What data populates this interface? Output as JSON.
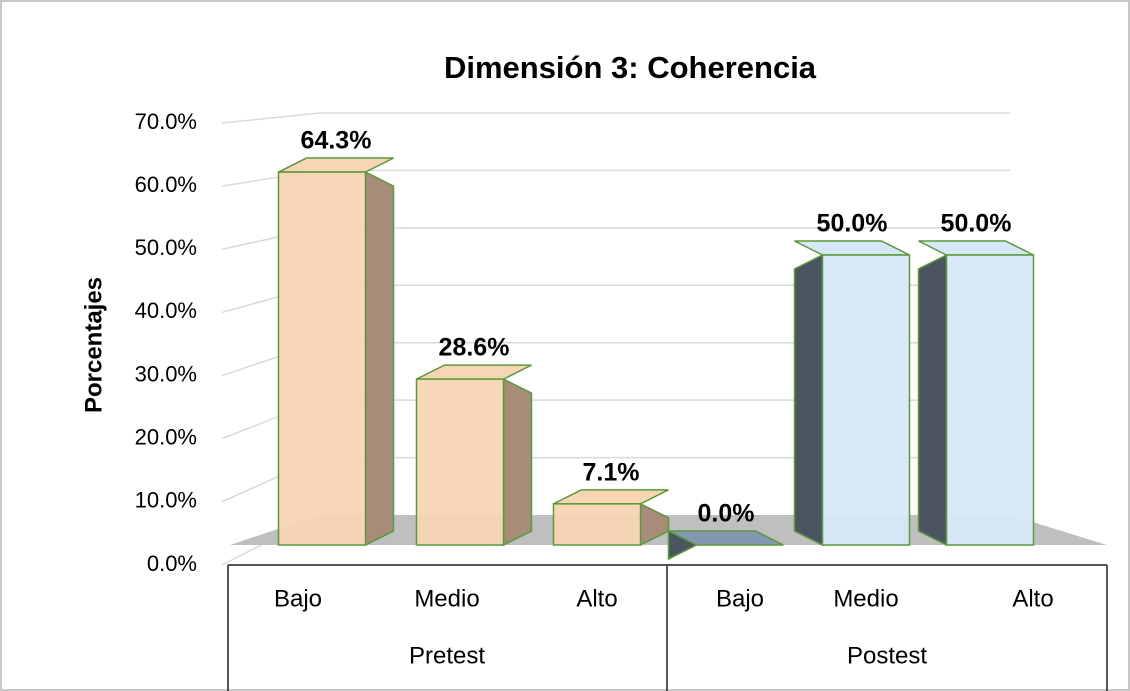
{
  "chart_data": {
    "type": "bar3d",
    "title": "Dimensión 3: Coherencia",
    "y_label": "Porcentajes",
    "ylim": [
      0,
      70
    ],
    "yticks": [
      {
        "value": 0,
        "label": "0.0%"
      },
      {
        "value": 10,
        "label": "10.0%"
      },
      {
        "value": 20,
        "label": "20.0%"
      },
      {
        "value": 30,
        "label": "30.0%"
      },
      {
        "value": 40,
        "label": "40.0%"
      },
      {
        "value": 50,
        "label": "50.0%"
      },
      {
        "value": 60,
        "label": "60.0%"
      },
      {
        "value": 70,
        "label": "70.0%"
      }
    ],
    "grid": true,
    "groups": [
      {
        "name": "Pretest",
        "color": "#f8d5b5",
        "side_color": "#a88c7a",
        "categories": [
          "Bajo",
          "Medio",
          "Alto"
        ],
        "values": [
          64.3,
          28.6,
          7.1
        ],
        "value_labels": [
          "64.3%",
          "28.6%",
          "7.1%"
        ]
      },
      {
        "name": "Postest",
        "color": "#d6e8f8",
        "side_color": "#4a5560",
        "categories": [
          "Bajo",
          "Medio",
          "Alto"
        ],
        "values": [
          0,
          50,
          50
        ],
        "value_labels": [
          "0.0%",
          "50.0%",
          "50.0%"
        ]
      }
    ]
  }
}
